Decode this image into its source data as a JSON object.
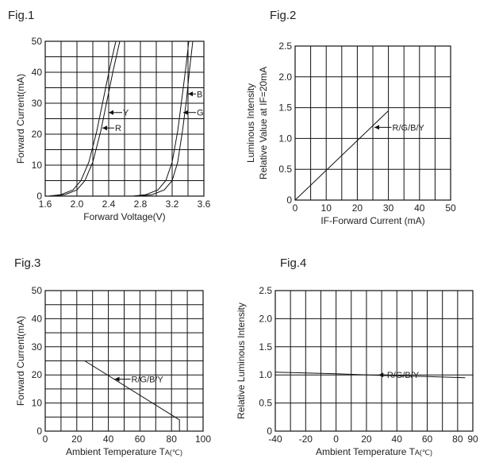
{
  "chart_data": [
    {
      "id": "fig1",
      "type": "line",
      "title": "Fig.1",
      "xlabel": "Forward Voltage(V)",
      "ylabel": "Forward Current(mA)",
      "xlim": [
        1.6,
        3.6
      ],
      "ylim": [
        0,
        50
      ],
      "x_grid_step": 0.2,
      "y_grid_step": 5,
      "xticks": [
        1.6,
        2.0,
        2.4,
        2.8,
        3.2,
        3.6
      ],
      "yticks": [
        0,
        10,
        20,
        30,
        40,
        50
      ],
      "xtick_labels": [
        "1.6",
        "2.0",
        "2.4",
        "2.8",
        "3.2",
        "3.6"
      ],
      "ytick_labels": [
        "0",
        "10",
        "20",
        "30",
        "40",
        "50"
      ],
      "series": [
        {
          "name": "Y",
          "x": [
            1.68,
            1.85,
            2.0,
            2.1,
            2.2,
            2.3,
            2.38,
            2.46,
            2.54
          ],
          "y": [
            0,
            0.5,
            2,
            5,
            11,
            21,
            31,
            41,
            50
          ],
          "label_at": {
            "x": 2.4,
            "y": 27,
            "label_x": 2.57
          }
        },
        {
          "name": "R",
          "x": [
            1.64,
            1.8,
            1.95,
            2.05,
            2.15,
            2.25,
            2.33,
            2.41,
            2.49
          ],
          "y": [
            0,
            0.5,
            2,
            5,
            11,
            21,
            31,
            41,
            50
          ],
          "label_at": {
            "x": 2.32,
            "y": 22,
            "label_x": 2.47
          }
        },
        {
          "name": "B",
          "x": [
            2.78,
            2.95,
            3.1,
            3.2,
            3.27,
            3.33,
            3.38,
            3.42,
            3.46
          ],
          "y": [
            0,
            0.5,
            2,
            5,
            11,
            21,
            31,
            41,
            50
          ],
          "label_at": {
            "x": 3.4,
            "y": 33,
            "label_x": 3.5
          }
        },
        {
          "name": "G",
          "x": [
            2.7,
            2.87,
            3.02,
            3.12,
            3.2,
            3.27,
            3.32,
            3.37,
            3.41
          ],
          "y": [
            0,
            0.5,
            2,
            5,
            11,
            21,
            31,
            41,
            50
          ],
          "label_at": {
            "x": 3.34,
            "y": 27,
            "label_x": 3.5
          }
        }
      ]
    },
    {
      "id": "fig2",
      "type": "line",
      "title": "Fig.2",
      "xlabel": "IF-Forward Current (mA)",
      "ylabel": [
        "Luminous Intensity",
        "Relative Value at IF=20mA"
      ],
      "xlim": [
        0,
        50
      ],
      "ylim": [
        0,
        2.5
      ],
      "x_grid_step": 5,
      "y_grid_step": 0.5,
      "xticks": [
        0,
        10,
        20,
        30,
        40,
        50
      ],
      "yticks": [
        0,
        0.5,
        1.0,
        1.5,
        2.0,
        2.5
      ],
      "xtick_labels": [
        "0",
        "10",
        "20",
        "30",
        "40",
        "50"
      ],
      "ytick_labels": [
        "0",
        "0.5",
        "1.0",
        "1.5",
        "2.0",
        "2.5"
      ],
      "series": [
        {
          "name": "R/G/B/Y",
          "x": [
            0,
            30
          ],
          "y": [
            0,
            1.45
          ],
          "label_at": {
            "x": 25.5,
            "y": 1.18,
            "label_x": 31
          }
        }
      ]
    },
    {
      "id": "fig3",
      "type": "line",
      "title": "Fig.3",
      "xlabel": "Ambient Temperature T",
      "xlabel_sub": "A",
      "xlabel_unit": "(℃)",
      "ylabel": "Forward Current(mA)",
      "xlim": [
        0,
        100
      ],
      "ylim": [
        0,
        50
      ],
      "x_grid_step": 10,
      "y_grid_step": 5,
      "xticks": [
        0,
        20,
        40,
        60,
        80,
        100
      ],
      "yticks": [
        0,
        10,
        20,
        30,
        40,
        50
      ],
      "xtick_labels": [
        "0",
        "20",
        "40",
        "60",
        "80",
        "100"
      ],
      "ytick_labels": [
        "0",
        "10",
        "20",
        "30",
        "40",
        "50"
      ],
      "series": [
        {
          "name": "R/G/B/Y",
          "x": [
            0,
            25,
            85,
            85
          ],
          "y": [
            25,
            25,
            4,
            0
          ],
          "label_at": {
            "x": 44,
            "y": 18.5,
            "label_x": 54
          }
        }
      ]
    },
    {
      "id": "fig4",
      "type": "line",
      "title": "Fig.4",
      "xlabel": "Ambient Temperature T",
      "xlabel_sub": "A",
      "xlabel_unit": "(℃)",
      "ylabel": "Relative Luminous Intensity",
      "xlim": [
        -40,
        90
      ],
      "ylim": [
        0,
        2.5
      ],
      "x_grid_step": 10,
      "y_grid_step": 0.5,
      "xticks": [
        -40,
        -20,
        0,
        20,
        40,
        60,
        80,
        90
      ],
      "yticks": [
        0,
        0.5,
        1.0,
        1.5,
        2.0,
        2.5
      ],
      "xtick_labels": [
        "-40",
        "-20",
        "0",
        "20",
        "40",
        "60",
        "80",
        "90"
      ],
      "ytick_labels": [
        "0",
        "0.5",
        "1.0",
        "1.5",
        "2.0",
        "2.5"
      ],
      "series": [
        {
          "name": "R/G/B/Y",
          "x": [
            -40,
            0,
            30,
            60,
            85
          ],
          "y": [
            1.05,
            1.02,
            0.99,
            0.97,
            0.95
          ],
          "label_at": {
            "x": 28,
            "y": 1.0,
            "label_x": 33
          }
        }
      ]
    }
  ]
}
